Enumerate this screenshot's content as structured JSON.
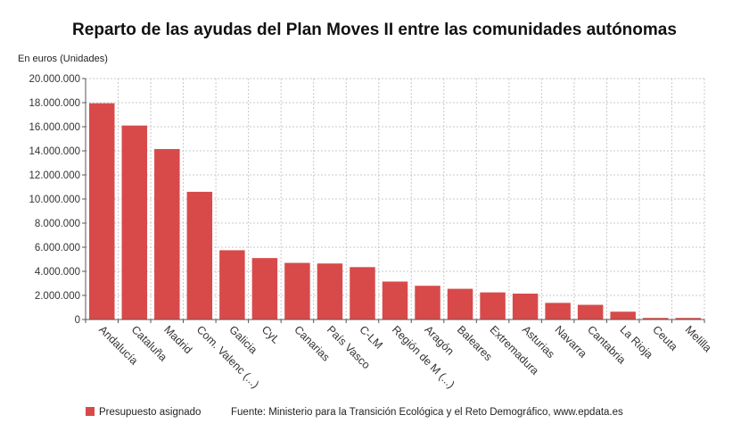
{
  "chart_data": {
    "type": "bar",
    "title": "Reparto de las ayudas del Plan Moves II entre las comunidades autónomas",
    "unit_label": "En euros (Unidades)",
    "categories": [
      "Andalucía",
      "Cataluña",
      "Madrid",
      "Com. Valenc (...)",
      "Galicia",
      "CyL",
      "Canarias",
      "País Vasco",
      "C-LM",
      "Región de M (...)",
      "Aragón",
      "Baleares",
      "Extremadura",
      "Asturias",
      "Navarra",
      "Cantabria",
      "La Rioja",
      "Ceuta",
      "Melilla"
    ],
    "series": [
      {
        "name": "Presupuesto asignado",
        "color": "#d84a4a",
        "values": [
          17950000,
          16100000,
          14150000,
          10600000,
          5750000,
          5100000,
          4700000,
          4650000,
          4350000,
          3150000,
          2800000,
          2550000,
          2250000,
          2150000,
          1380000,
          1220000,
          650000,
          130000,
          130000
        ]
      }
    ],
    "ylim": [
      0,
      20000000
    ],
    "yticks": [
      0,
      2000000,
      4000000,
      6000000,
      8000000,
      10000000,
      12000000,
      14000000,
      16000000,
      18000000,
      20000000
    ],
    "ytick_labels": [
      "0",
      "2.000.000",
      "4.000.000",
      "6.000.000",
      "8.000.000",
      "10.000.000",
      "12.000.000",
      "14.000.000",
      "16.000.000",
      "18.000.000",
      "20.000.000"
    ],
    "grid": true,
    "legend_position": "bottom-left",
    "source": "Fuente: Ministerio para la Transición Ecológica y el Reto Demográfico, www.epdata.es"
  }
}
